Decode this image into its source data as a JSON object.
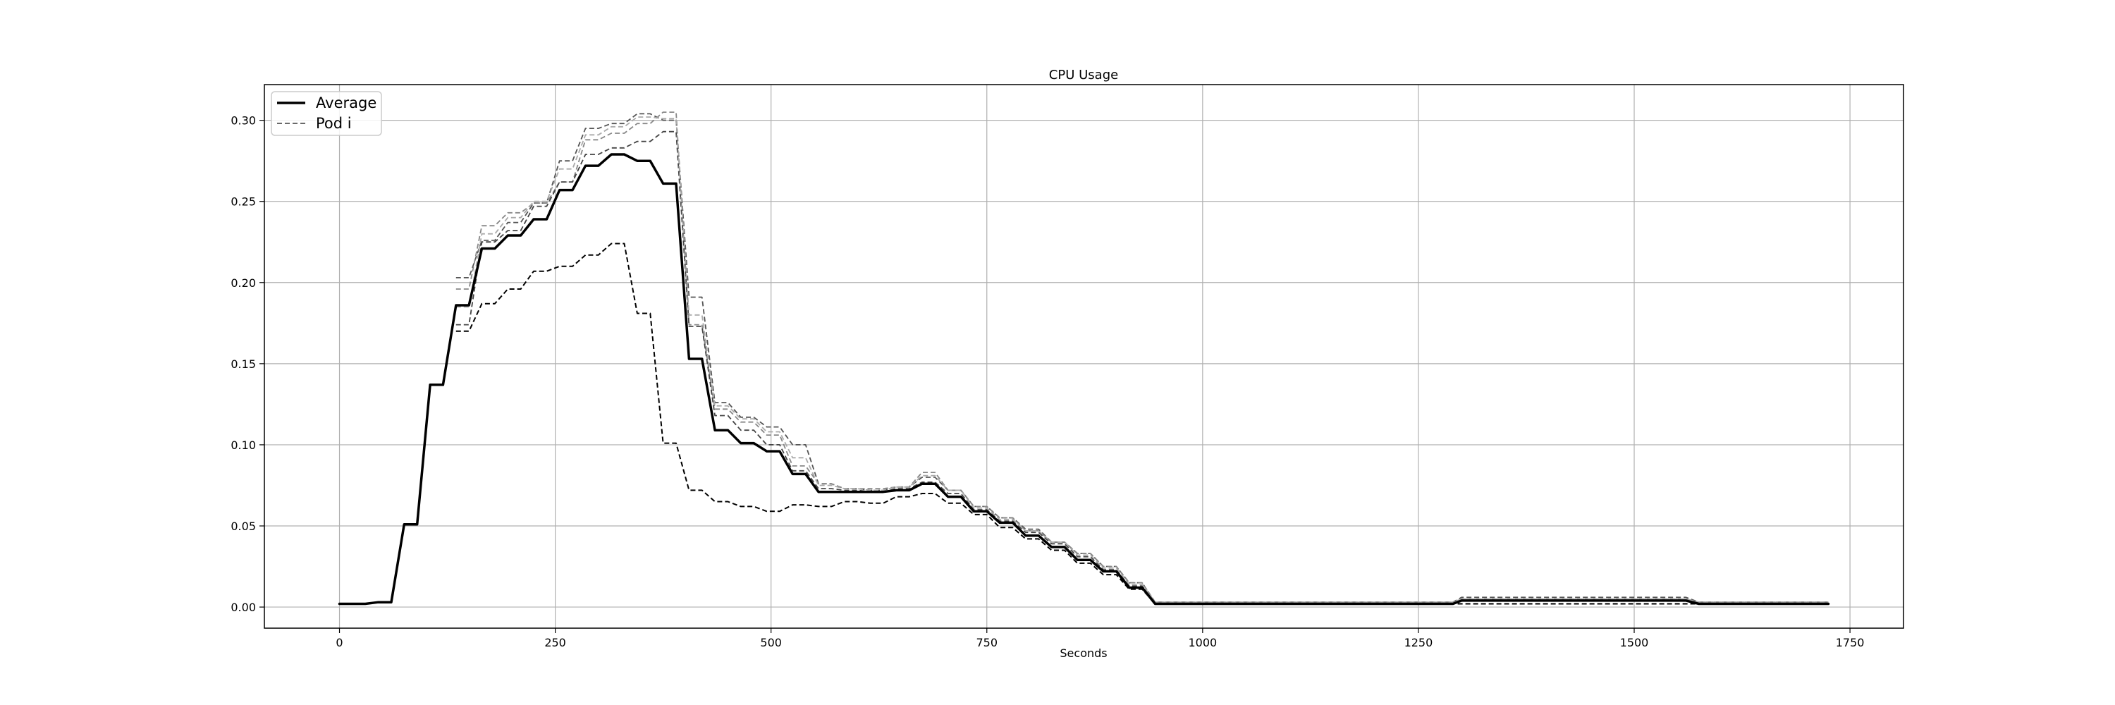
{
  "chart_data": {
    "type": "line",
    "title": "CPU Usage",
    "xlabel": "Seconds",
    "ylabel": "",
    "xlim": [
      -87,
      1812
    ],
    "ylim": [
      -0.013,
      0.322
    ],
    "xticks": [
      0,
      250,
      500,
      750,
      1000,
      1250,
      1500,
      1750
    ],
    "yticks": [
      0.0,
      0.05,
      0.1,
      0.15,
      0.2,
      0.25,
      0.3
    ],
    "xtick_labels": [
      "0",
      "250",
      "500",
      "750",
      "1000",
      "1250",
      "1500",
      "1750"
    ],
    "ytick_labels": [
      "0.00",
      "0.05",
      "0.10",
      "0.15",
      "0.20",
      "0.25",
      "0.30"
    ],
    "grid": true,
    "legend": {
      "placement": "top-left",
      "entries": [
        {
          "label": "Average",
          "style": "solid",
          "color": "#000000"
        },
        {
          "label": "Pod i",
          "style": "dashed",
          "color": "#555555"
        }
      ]
    },
    "series": [
      {
        "name": "Average",
        "style": "solid",
        "color": "#000000",
        "width": 3.5,
        "x": [
          0,
          15,
          30,
          45,
          60,
          75,
          90,
          105,
          120,
          135,
          150,
          165,
          180,
          195,
          210,
          225,
          240,
          255,
          270,
          285,
          300,
          315,
          330,
          345,
          360,
          375,
          390,
          405,
          420,
          435,
          450,
          465,
          480,
          495,
          510,
          525,
          540,
          555,
          570,
          585,
          600,
          615,
          630,
          645,
          660,
          675,
          690,
          705,
          720,
          735,
          750,
          765,
          780,
          795,
          810,
          825,
          840,
          855,
          870,
          885,
          900,
          915,
          930,
          945,
          960,
          1000,
          1100,
          1200,
          1290,
          1300,
          1400,
          1500,
          1560,
          1575,
          1650,
          1725
        ],
        "y": [
          0.002,
          0.002,
          0.002,
          0.003,
          0.003,
          0.051,
          0.051,
          0.137,
          0.137,
          0.186,
          0.186,
          0.221,
          0.221,
          0.229,
          0.229,
          0.239,
          0.239,
          0.257,
          0.257,
          0.272,
          0.272,
          0.279,
          0.279,
          0.275,
          0.275,
          0.261,
          0.261,
          0.153,
          0.153,
          0.109,
          0.109,
          0.101,
          0.101,
          0.096,
          0.096,
          0.082,
          0.082,
          0.071,
          0.071,
          0.071,
          0.071,
          0.071,
          0.071,
          0.072,
          0.072,
          0.076,
          0.076,
          0.068,
          0.068,
          0.059,
          0.059,
          0.052,
          0.052,
          0.044,
          0.044,
          0.037,
          0.037,
          0.029,
          0.029,
          0.022,
          0.022,
          0.012,
          0.012,
          0.002,
          0.002,
          0.002,
          0.002,
          0.002,
          0.002,
          0.004,
          0.004,
          0.004,
          0.004,
          0.002,
          0.002,
          0.002
        ]
      },
      {
        "name": "",
        "style": "dashed",
        "color": "#000000",
        "width": 2.0,
        "x": [
          135,
          150,
          165,
          180,
          195,
          210,
          225,
          240,
          255,
          270,
          285,
          300,
          315,
          330,
          345,
          360,
          375,
          390,
          405,
          420,
          435,
          450,
          465,
          480,
          495,
          510,
          525,
          540,
          555,
          570,
          585,
          600,
          615,
          630,
          645,
          660,
          675,
          690,
          705,
          720,
          735,
          750,
          765,
          780,
          795,
          810,
          825,
          840,
          855,
          870,
          885,
          900,
          915,
          930,
          945,
          1000,
          1200,
          1300,
          1500,
          1575,
          1725
        ],
        "y": [
          0.17,
          0.17,
          0.187,
          0.187,
          0.196,
          0.196,
          0.207,
          0.207,
          0.21,
          0.21,
          0.217,
          0.217,
          0.224,
          0.224,
          0.181,
          0.181,
          0.101,
          0.101,
          0.072,
          0.072,
          0.065,
          0.065,
          0.062,
          0.062,
          0.059,
          0.059,
          0.063,
          0.063,
          0.062,
          0.062,
          0.065,
          0.065,
          0.064,
          0.064,
          0.068,
          0.068,
          0.07,
          0.07,
          0.064,
          0.064,
          0.057,
          0.057,
          0.049,
          0.049,
          0.042,
          0.042,
          0.035,
          0.035,
          0.027,
          0.027,
          0.02,
          0.02,
          0.011,
          0.011,
          0.002,
          0.002,
          0.002,
          0.002,
          0.002,
          0.002,
          0.002
        ]
      },
      {
        "name": "",
        "style": "dashed",
        "color": "#555555",
        "width": 1.8,
        "x": [
          135,
          150,
          165,
          180,
          195,
          210,
          225,
          240,
          255,
          270,
          285,
          300,
          315,
          330,
          345,
          360,
          375,
          390,
          405,
          420,
          435,
          450,
          465,
          480,
          495,
          510,
          525,
          540,
          555,
          570,
          585,
          600,
          615,
          630,
          645,
          660,
          675,
          690,
          705,
          720,
          735,
          750,
          765,
          780,
          795,
          810,
          825,
          840,
          855,
          870,
          885,
          900,
          915,
          930,
          945,
          1000,
          1290,
          1300,
          1560,
          1575,
          1725
        ],
        "y": [
          0.203,
          0.203,
          0.226,
          0.226,
          0.237,
          0.237,
          0.249,
          0.249,
          0.275,
          0.275,
          0.295,
          0.295,
          0.298,
          0.298,
          0.304,
          0.304,
          0.3,
          0.3,
          0.191,
          0.191,
          0.126,
          0.126,
          0.117,
          0.117,
          0.111,
          0.111,
          0.1,
          0.1,
          0.076,
          0.076,
          0.073,
          0.073,
          0.072,
          0.072,
          0.074,
          0.074,
          0.08,
          0.08,
          0.072,
          0.072,
          0.062,
          0.062,
          0.055,
          0.055,
          0.048,
          0.048,
          0.04,
          0.04,
          0.033,
          0.033,
          0.025,
          0.025,
          0.015,
          0.015,
          0.003,
          0.003,
          0.003,
          0.006,
          0.006,
          0.003,
          0.003
        ]
      },
      {
        "name": "",
        "style": "dashed",
        "color": "#888888",
        "width": 1.8,
        "x": [
          135,
          150,
          165,
          180,
          195,
          210,
          225,
          240,
          255,
          270,
          285,
          300,
          315,
          330,
          345,
          360,
          375,
          390,
          405,
          420,
          435,
          450,
          465,
          480,
          495,
          510,
          525,
          540,
          555,
          570,
          585,
          600,
          615,
          630,
          645,
          660,
          675,
          690,
          705,
          720,
          735,
          750,
          765,
          780,
          795,
          810,
          825,
          840,
          855,
          870,
          885,
          900,
          915,
          930,
          945,
          1000,
          1290,
          1300,
          1560,
          1575,
          1725
        ],
        "y": [
          0.196,
          0.196,
          0.235,
          0.235,
          0.243,
          0.243,
          0.249,
          0.249,
          0.262,
          0.262,
          0.288,
          0.288,
          0.292,
          0.292,
          0.298,
          0.298,
          0.305,
          0.305,
          0.174,
          0.174,
          0.122,
          0.122,
          0.114,
          0.114,
          0.106,
          0.106,
          0.087,
          0.087,
          0.076,
          0.076,
          0.073,
          0.073,
          0.073,
          0.073,
          0.074,
          0.074,
          0.083,
          0.083,
          0.072,
          0.072,
          0.062,
          0.062,
          0.055,
          0.055,
          0.047,
          0.047,
          0.04,
          0.04,
          0.033,
          0.033,
          0.025,
          0.025,
          0.015,
          0.015,
          0.003,
          0.003,
          0.003,
          0.005,
          0.005,
          0.003,
          0.003
        ]
      },
      {
        "name": "",
        "style": "dashed",
        "color": "#444444",
        "width": 1.8,
        "x": [
          135,
          150,
          165,
          180,
          195,
          210,
          225,
          240,
          255,
          270,
          285,
          300,
          315,
          330,
          345,
          360,
          375,
          390,
          405,
          420,
          435,
          450,
          465,
          480,
          495,
          510,
          525,
          540,
          555,
          570,
          585,
          600,
          615,
          630,
          645,
          660,
          675,
          690,
          705,
          720,
          735,
          750,
          765,
          780,
          795,
          810,
          825,
          840,
          855,
          870,
          885,
          900,
          915,
          930,
          945,
          1000,
          1290,
          1300,
          1560,
          1575,
          1725
        ],
        "y": [
          0.174,
          0.174,
          0.225,
          0.225,
          0.232,
          0.232,
          0.247,
          0.247,
          0.262,
          0.262,
          0.279,
          0.279,
          0.283,
          0.283,
          0.287,
          0.287,
          0.293,
          0.293,
          0.173,
          0.173,
          0.118,
          0.118,
          0.109,
          0.109,
          0.1,
          0.1,
          0.084,
          0.084,
          0.073,
          0.073,
          0.072,
          0.072,
          0.071,
          0.071,
          0.073,
          0.073,
          0.077,
          0.077,
          0.07,
          0.07,
          0.06,
          0.06,
          0.053,
          0.053,
          0.046,
          0.046,
          0.039,
          0.039,
          0.031,
          0.031,
          0.023,
          0.023,
          0.013,
          0.013,
          0.002,
          0.002,
          0.002,
          0.004,
          0.004,
          0.002,
          0.002
        ]
      },
      {
        "name": "",
        "style": "dashed",
        "color": "#aaaaaa",
        "width": 1.8,
        "x": [
          135,
          150,
          165,
          180,
          195,
          210,
          225,
          240,
          255,
          270,
          285,
          300,
          315,
          330,
          345,
          360,
          375,
          390,
          405,
          420,
          435,
          450,
          465,
          480,
          495,
          510,
          525,
          540,
          555,
          570,
          585,
          600,
          615,
          630,
          645,
          660,
          675,
          690,
          705,
          720,
          735,
          750,
          765,
          780,
          795,
          810,
          825,
          840,
          855,
          870,
          885,
          900,
          915,
          930,
          945,
          1000,
          1290,
          1300,
          1560,
          1575,
          1725
        ],
        "y": [
          0.185,
          0.185,
          0.23,
          0.23,
          0.24,
          0.24,
          0.25,
          0.25,
          0.27,
          0.27,
          0.291,
          0.291,
          0.296,
          0.296,
          0.302,
          0.302,
          0.301,
          0.301,
          0.18,
          0.18,
          0.124,
          0.124,
          0.116,
          0.116,
          0.108,
          0.108,
          0.092,
          0.092,
          0.075,
          0.075,
          0.073,
          0.073,
          0.072,
          0.072,
          0.074,
          0.074,
          0.081,
          0.081,
          0.072,
          0.072,
          0.061,
          0.061,
          0.054,
          0.054,
          0.047,
          0.047,
          0.04,
          0.04,
          0.032,
          0.032,
          0.024,
          0.024,
          0.014,
          0.014,
          0.003,
          0.003,
          0.003,
          0.005,
          0.005,
          0.003,
          0.003
        ]
      }
    ]
  }
}
